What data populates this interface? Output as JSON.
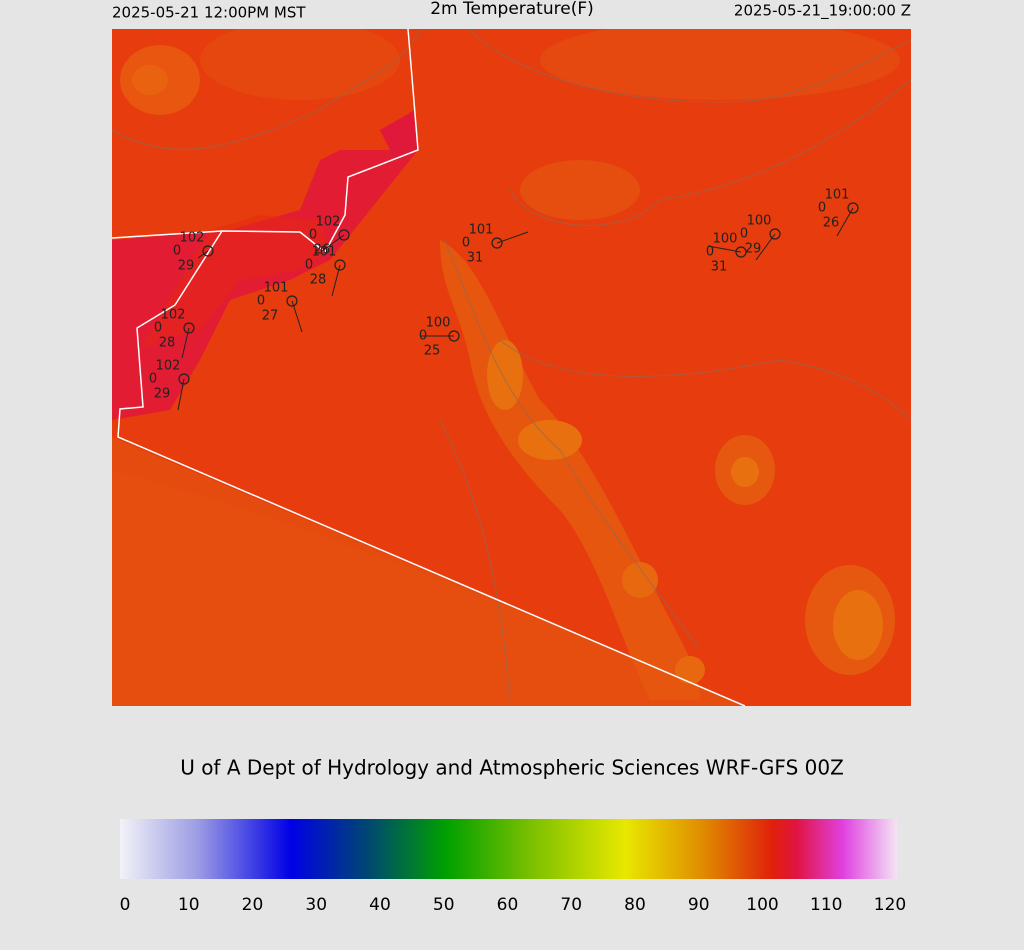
{
  "header": {
    "left": "2025-05-21 12:00PM MST",
    "title": "2m Temperature(F)",
    "right": "2025-05-21_19:00:00 Z"
  },
  "credit": "U of A Dept of Hydrology and Atmospheric Sciences WRF-GFS 00Z",
  "stations": [
    {
      "temp": 102,
      "wind": 0,
      "dew": 29
    },
    {
      "temp": 102,
      "wind": 0,
      "dew": 26
    },
    {
      "temp": 101,
      "wind": 0,
      "dew": 28
    },
    {
      "temp": 101,
      "wind": 0,
      "dew": 27
    },
    {
      "temp": 102,
      "wind": 0,
      "dew": 28
    },
    {
      "temp": 102,
      "wind": 0,
      "dew": 29
    },
    {
      "temp": 101,
      "wind": 0,
      "dew": 31
    },
    {
      "temp": 100,
      "wind": 0,
      "dew": 25
    },
    {
      "temp": 100,
      "wind": 0,
      "dew": 31
    },
    {
      "temp": 100,
      "wind": 0,
      "dew": 29
    },
    {
      "temp": 101,
      "wind": 0,
      "dew": 26
    }
  ],
  "colorbar": {
    "range": [
      0,
      120
    ],
    "ticks": [
      0,
      10,
      20,
      30,
      40,
      50,
      60,
      70,
      80,
      90,
      100,
      110,
      120
    ]
  }
}
